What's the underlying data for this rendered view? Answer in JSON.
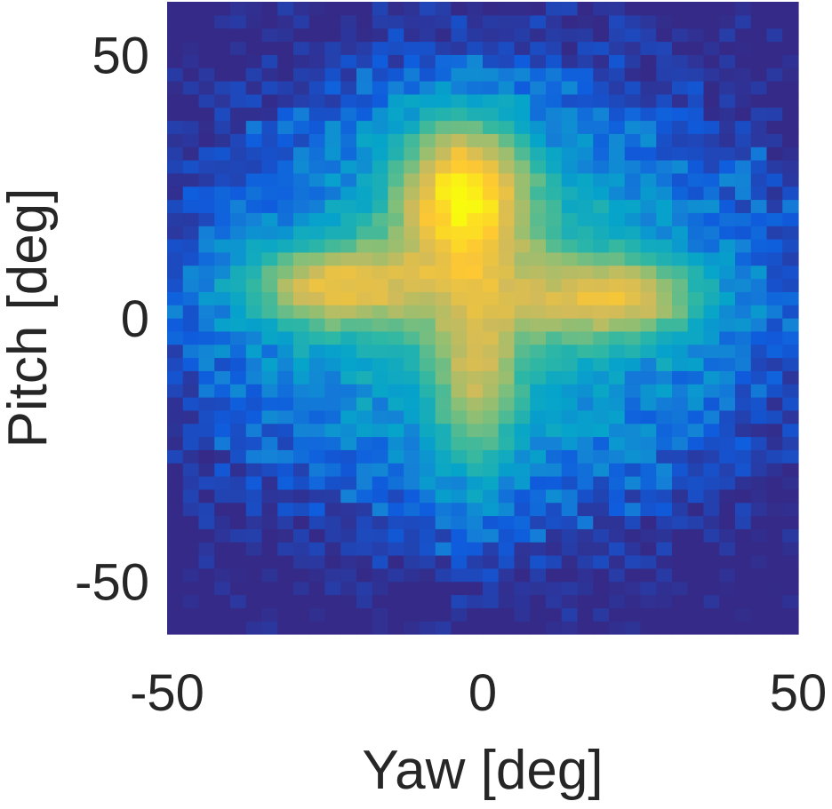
{
  "chart_data": {
    "type": "heatmap",
    "title": "",
    "xlabel": "Yaw [deg]",
    "ylabel": "Pitch [deg]",
    "xlim": [
      -50,
      50
    ],
    "ylim": [
      -60,
      60
    ],
    "x_ticks": [
      -50,
      0,
      50
    ],
    "x_tick_labels": [
      "-50",
      "0",
      "50"
    ],
    "y_ticks": [
      -50,
      0,
      50
    ],
    "y_tick_labels": [
      "-50",
      "0",
      "50"
    ],
    "colormap": "parula",
    "colors": [
      "#352a87",
      "#0f5cdd",
      "#1481d6",
      "#06a4ca",
      "#2eb7a4",
      "#87bf77",
      "#d1bb59",
      "#fec832",
      "#f9fb0e"
    ],
    "value_range": [
      0,
      1
    ],
    "grid": false,
    "legend": "none",
    "bin_size_deg": 2.5,
    "description_of_values": "relative density (0 = dark blue, 1 = yellow)",
    "components": [
      {
        "yaw": -3,
        "pitch": 25,
        "sigma_yaw": 8,
        "sigma_pitch": 11,
        "weight": 0.55
      },
      {
        "yaw": -25,
        "pitch": 6,
        "sigma_yaw": 11,
        "sigma_pitch": 6,
        "weight": 0.42
      },
      {
        "yaw": 22,
        "pitch": 4,
        "sigma_yaw": 11,
        "sigma_pitch": 6,
        "weight": 0.4
      },
      {
        "yaw": -1,
        "pitch": -14,
        "sigma_yaw": 5,
        "sigma_pitch": 15,
        "weight": 0.3
      },
      {
        "yaw": 0,
        "pitch": 4,
        "sigma_yaw": 34,
        "sigma_pitch": 30,
        "weight": 0.5
      }
    ]
  }
}
